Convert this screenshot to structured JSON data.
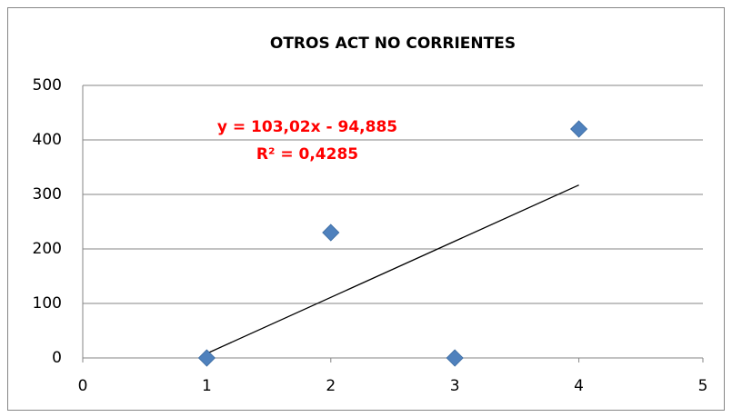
{
  "chart_data": {
    "type": "scatter",
    "title": "OTROS ACT NO CORRIENTES",
    "x": [
      1,
      2,
      3,
      4
    ],
    "values": [
      0,
      230,
      0,
      420
    ],
    "color": "#4f81bd",
    "xlim": [
      0,
      5
    ],
    "xticks": [
      0,
      1,
      2,
      3,
      4,
      5
    ],
    "ylim": [
      0,
      500
    ],
    "yticks": [
      0,
      100,
      200,
      300,
      400,
      500
    ],
    "grid": true,
    "trendline": {
      "slope": 103.02,
      "intercept": -94.885,
      "color": "#000000",
      "equation": "y = 103,02x - 94,885",
      "r2": 0.4285,
      "r2_label": "R² = 0,4285",
      "label_color": "#ff0000"
    }
  }
}
